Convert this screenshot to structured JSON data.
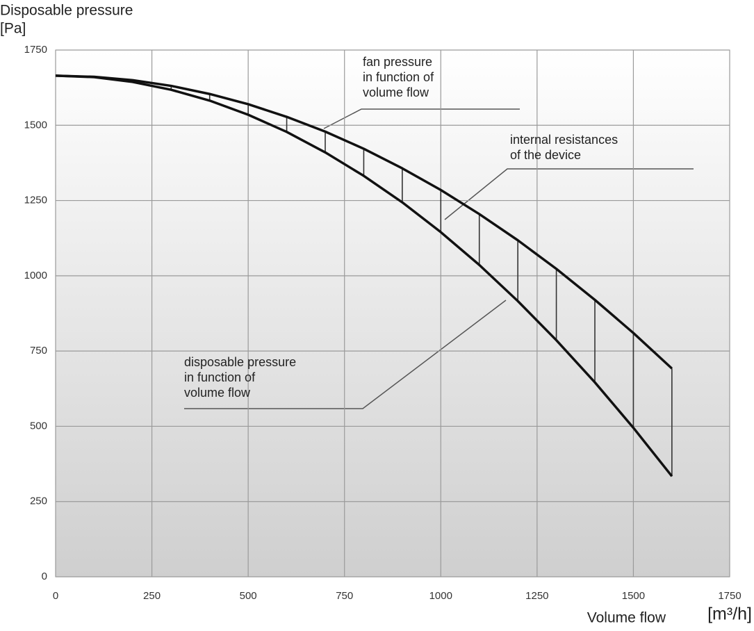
{
  "chart_data": {
    "type": "line",
    "y_label": [
      "Disposable pressure",
      "[Pa]"
    ],
    "x_label": "Volume flow",
    "x_unit": "[m³/h]",
    "x": [
      0,
      100,
      200,
      300,
      400,
      500,
      600,
      700,
      800,
      900,
      1000,
      1100,
      1200,
      1300,
      1400,
      1500,
      1600
    ],
    "series": [
      {
        "color": "#111111",
        "values": [
          1665,
          1661,
          1650,
          1631,
          1604,
          1570,
          1528,
          1479,
          1422,
          1357,
          1285,
          1205,
          1118,
          1023,
          920,
          810,
          692
        ]
      },
      {
        "color": "#111111",
        "values": [
          1665,
          1660,
          1644,
          1618,
          1582,
          1535,
          1478,
          1410,
          1332,
          1244,
          1145,
          1036,
          916,
          786,
          646,
          495,
          334
        ]
      }
    ],
    "annotations": [
      [
        "fan pressure",
        "in function of",
        "volume flow"
      ],
      [
        "internal resistances",
        "of the device"
      ],
      [
        "disposable pressure",
        "in function of",
        "volume flow"
      ]
    ],
    "xlim": [
      0,
      1750
    ],
    "xticks": [
      0,
      250,
      500,
      750,
      1000,
      1250,
      1500,
      1750
    ],
    "ylim": [
      0,
      1750
    ],
    "yticks": [
      0,
      250,
      500,
      750,
      1000,
      1250,
      1500,
      1750
    ],
    "grid": true
  }
}
